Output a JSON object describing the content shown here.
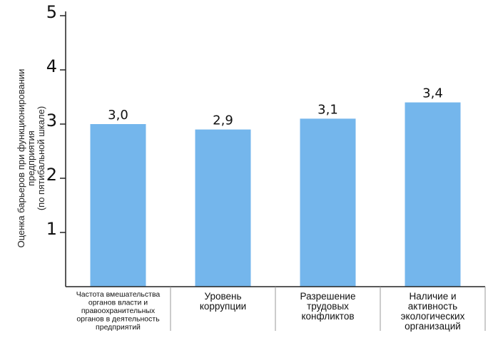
{
  "chart_data": {
    "type": "bar",
    "categories": [
      [
        "Частота вмешательства",
        "органов власти и",
        "правоохранительных",
        "органов в деятельность",
        "предприятий"
      ],
      [
        "Уровень",
        "коррупции"
      ],
      [
        "Разрешение",
        "трудовых",
        "конфликтов"
      ],
      [
        "Наличие и",
        "активность",
        "экологических",
        "организаций"
      ]
    ],
    "values": [
      3.0,
      2.9,
      3.1,
      3.4
    ],
    "data_labels": [
      "3,0",
      "2,9",
      "3,1",
      "3,4"
    ],
    "ylabel_lines": [
      "Оценка барьеров при функционировании",
      "предприятия",
      "(по пятибальной шкале)"
    ],
    "ylim": [
      0,
      5
    ],
    "yticks": [
      1,
      2,
      3,
      4,
      5
    ],
    "grid": false,
    "legend": "none",
    "colors": {
      "bar": "#74b6ec",
      "axis": "#222222",
      "separator": "#999999"
    }
  }
}
